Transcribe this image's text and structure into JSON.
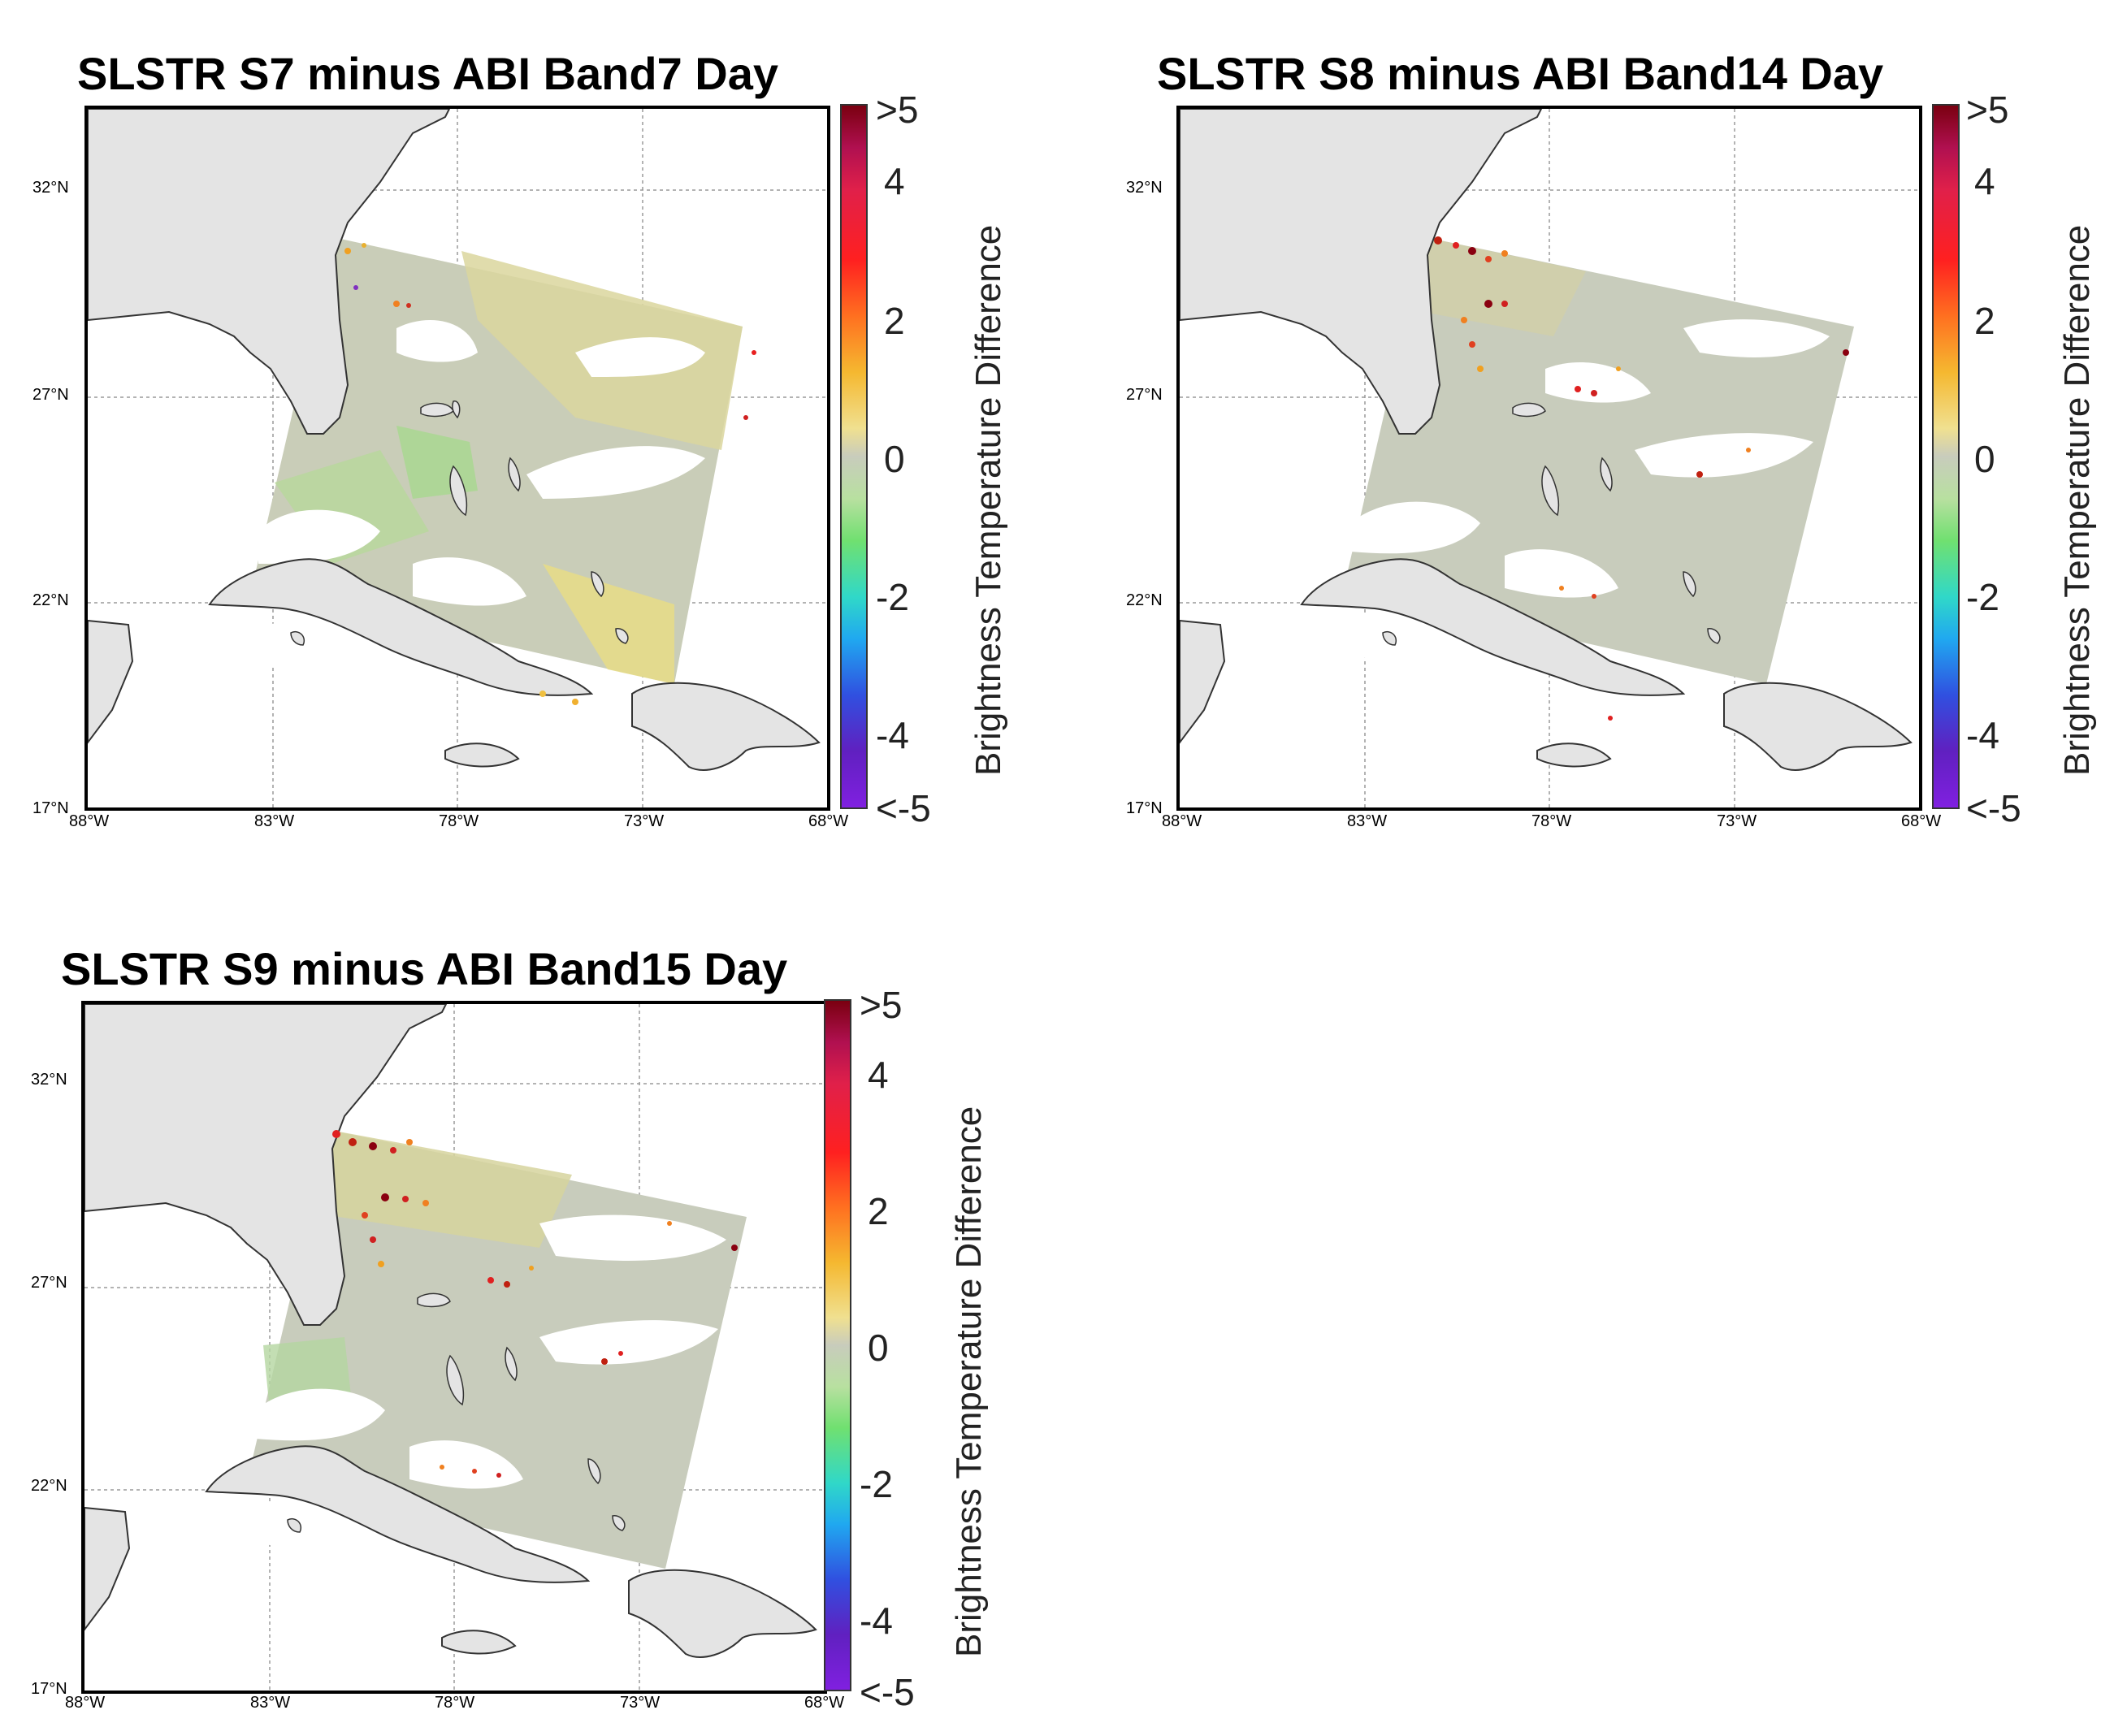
{
  "figure": {
    "colorbar_label": "Brightness Temperature Difference",
    "colorbar_ticks": [
      ">5",
      "4",
      "2",
      "0",
      "-2",
      "-4",
      "<-5"
    ],
    "lat_ticks": [
      "32°N",
      "27°N",
      "22°N",
      "17°N"
    ],
    "lon_ticks": [
      "88°W",
      "83°W",
      "78°W",
      "73°W",
      "68°W"
    ],
    "colors": {
      "land": "#e4e4e4",
      "coast": "#333333",
      "grid": "#9a9a9a",
      "neutral": "#c6ccbb"
    }
  },
  "panels": [
    {
      "title": "SLSTR S7 minus ABI Band7 Day"
    },
    {
      "title": "SLSTR S8 minus ABI Band14 Day"
    },
    {
      "title": "SLSTR S9 minus ABI Band15 Day"
    }
  ],
  "chart_data": [
    {
      "type": "heatmap",
      "title": "SLSTR S7 minus ABI Band7 Day",
      "xlabel": "",
      "ylabel": "",
      "lon_range": [
        -88,
        -68
      ],
      "lat_range": [
        17,
        34
      ],
      "colorbar": {
        "label": "Brightness Temperature Difference",
        "range": [
          -5,
          5
        ]
      },
      "dominant_difference": "0 to +1 (yellow-grey) with patches of -1 (green) near Bahamas"
    },
    {
      "type": "heatmap",
      "title": "SLSTR S8 minus ABI Band14 Day",
      "xlabel": "",
      "ylabel": "",
      "lon_range": [
        -88,
        -68
      ],
      "lat_range": [
        17,
        34
      ],
      "colorbar": {
        "label": "Brightness Temperature Difference",
        "range": [
          -5,
          5
        ]
      },
      "dominant_difference": "~0 (grey) with scattered +2 to >5 hotspots near Florida coast"
    },
    {
      "type": "heatmap",
      "title": "SLSTR S9 minus ABI Band15 Day",
      "xlabel": "",
      "ylabel": "",
      "lon_range": [
        -88,
        -68
      ],
      "lat_range": [
        17,
        34
      ],
      "colorbar": {
        "label": "Brightness Temperature Difference",
        "range": [
          -5,
          5
        ]
      },
      "dominant_difference": "~0 (grey) with scattered +2 to >5 hotspots near Florida coast"
    }
  ]
}
